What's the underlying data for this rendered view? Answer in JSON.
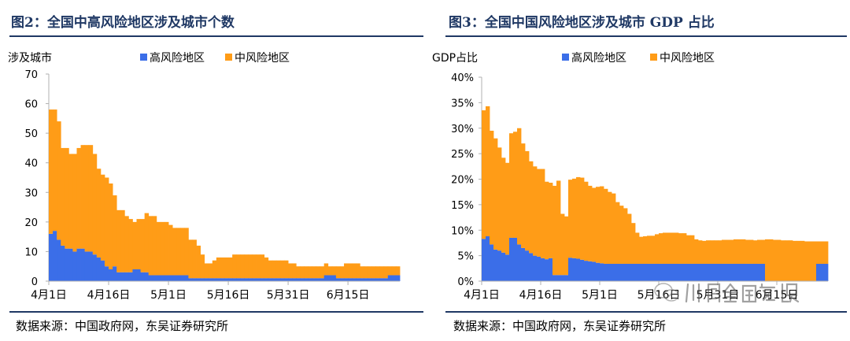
{
  "colors": {
    "high": "#3b6ee8",
    "medium": "#ff9c17",
    "title": "#1f3864",
    "axis": "#b0b0b0"
  },
  "watermark": {
    "brand_text": "川阅全球宏观",
    "icon": "wechat-logo-icon"
  },
  "chart_data": [
    {
      "type": "bar",
      "stacked": true,
      "title": "图2：全国中高风险地区涉及城市个数",
      "ylabel": "涉及城市",
      "xlabel": "",
      "ylim": [
        0,
        70
      ],
      "yticks": [
        0,
        10,
        20,
        30,
        40,
        50,
        60,
        70
      ],
      "ytick_labels": [
        "0",
        "10",
        "20",
        "30",
        "40",
        "50",
        "60",
        "70"
      ],
      "x_start": "4月1日",
      "xticks": [
        {
          "label": "4月1日",
          "day": 0
        },
        {
          "label": "4月16日",
          "day": 15
        },
        {
          "label": "5月1日",
          "day": 30
        },
        {
          "label": "5月16日",
          "day": 45
        },
        {
          "label": "5月31日",
          "day": 60
        },
        {
          "label": "6月15日",
          "day": 75
        }
      ],
      "legend": {
        "position": "top-center",
        "entries": [
          "高风险地区",
          "中风险地区"
        ]
      },
      "source": "数据来源：中国政府网，东吴证券研究所",
      "series": [
        {
          "name": "高风险地区",
          "key": "high",
          "values": [
            16,
            17,
            14,
            12,
            11,
            11,
            10,
            11,
            11,
            10,
            10,
            9,
            8,
            7,
            5,
            4,
            5,
            3,
            3,
            3,
            3,
            4,
            4,
            3,
            3,
            2,
            2,
            2,
            2,
            2,
            2,
            2,
            2,
            2,
            2,
            1,
            1,
            1,
            1,
            1,
            1,
            1,
            1,
            1,
            1,
            1,
            1,
            1,
            1,
            1,
            1,
            1,
            1,
            1,
            1,
            1,
            1,
            1,
            1,
            1,
            1,
            1,
            1,
            1,
            1,
            1,
            1,
            1,
            1,
            2,
            2,
            2,
            1,
            1,
            1,
            1,
            1,
            1,
            1,
            1,
            1,
            1,
            1,
            1,
            1,
            2,
            2,
            2
          ]
        },
        {
          "name": "中风险地区",
          "key": "medium",
          "values": [
            42,
            41,
            40,
            33,
            34,
            32,
            33,
            34,
            35,
            36,
            36,
            34,
            30,
            29,
            30,
            29,
            24,
            21,
            21,
            19,
            18,
            16,
            17,
            18,
            20,
            20,
            20,
            18,
            18,
            18,
            17,
            16,
            16,
            16,
            16,
            13,
            13,
            11,
            8,
            5,
            5,
            6,
            7,
            7,
            7,
            7,
            8,
            8,
            8,
            8,
            8,
            8,
            8,
            8,
            7,
            6,
            6,
            6,
            6,
            6,
            5,
            5,
            4,
            4,
            4,
            4,
            4,
            4,
            4,
            4,
            3,
            3,
            4,
            4,
            5,
            5,
            5,
            5,
            4,
            4,
            4,
            4,
            4,
            4,
            4,
            3,
            3,
            3
          ]
        }
      ]
    },
    {
      "type": "bar",
      "stacked": true,
      "title": "图3：全国中国风险地区涉及城市 GDP 占比",
      "ylabel": "GDP占比",
      "xlabel": "",
      "ylim": [
        0,
        40
      ],
      "yticks": [
        0,
        5,
        10,
        15,
        20,
        25,
        30,
        35,
        40
      ],
      "ytick_labels": [
        "0%",
        "5%",
        "10%",
        "15%",
        "20%",
        "25%",
        "30%",
        "35%",
        "40%"
      ],
      "x_start": "4月1日",
      "xticks": [
        {
          "label": "4月1日",
          "day": 0
        },
        {
          "label": "4月16日",
          "day": 15
        },
        {
          "label": "5月1日",
          "day": 30
        },
        {
          "label": "5月16日",
          "day": 45
        },
        {
          "label": "5月31日",
          "day": 60
        },
        {
          "label": "6月15日",
          "day": 75
        }
      ],
      "legend": {
        "position": "top-center",
        "entries": [
          "高风险地区",
          "中风险地区"
        ]
      },
      "source": "数据来源：中国政府网，东吴证券研究所",
      "series": [
        {
          "name": "高风险地区",
          "key": "high",
          "values": [
            8.3,
            8.8,
            7.2,
            6.2,
            6.0,
            5.6,
            5.2,
            8.5,
            8.5,
            7.2,
            6.5,
            6.0,
            5.5,
            5.0,
            4.8,
            4.5,
            4.3,
            4.5,
            1.2,
            1.2,
            1.2,
            1.2,
            4.6,
            4.5,
            4.4,
            4.2,
            4.0,
            3.9,
            3.8,
            3.6,
            3.5,
            3.4,
            3.4,
            3.4,
            3.4,
            3.4,
            3.4,
            3.4,
            3.4,
            3.4,
            3.4,
            3.4,
            3.4,
            3.4,
            3.4,
            3.4,
            3.4,
            3.4,
            3.4,
            3.4,
            3.4,
            3.4,
            3.4,
            3.4,
            3.4,
            3.4,
            3.4,
            3.4,
            3.4,
            3.4,
            3.4,
            3.4,
            3.4,
            3.4,
            3.4,
            3.4,
            3.4,
            3.4,
            3.4,
            3.4,
            3.4,
            3.4,
            0,
            0,
            0,
            0,
            0,
            0,
            0,
            0,
            0,
            0,
            0,
            0,
            0,
            3.4,
            3.4,
            3.4
          ]
        },
        {
          "name": "中风险地区",
          "key": "medium",
          "values": [
            25.2,
            25.5,
            22.3,
            21.8,
            20.2,
            18.6,
            18.0,
            20.5,
            20.8,
            22.8,
            20.5,
            19.5,
            18.0,
            17.5,
            17.2,
            17.5,
            15.2,
            14.8,
            17.5,
            18.5,
            12.0,
            11.5,
            15.3,
            15.6,
            16.0,
            16.1,
            15.5,
            14.8,
            14.5,
            14.9,
            15.1,
            14.7,
            14.1,
            13.8,
            12.1,
            11.4,
            10.9,
            9.8,
            8.0,
            6.1,
            5.3,
            5.4,
            5.5,
            5.5,
            5.8,
            6.0,
            6.1,
            6.1,
            6.1,
            6.1,
            6.0,
            6.0,
            5.6,
            5.6,
            4.8,
            4.6,
            4.5,
            4.6,
            4.6,
            4.6,
            4.6,
            4.7,
            4.7,
            4.7,
            4.8,
            4.8,
            4.8,
            4.7,
            4.7,
            4.6,
            4.7,
            4.7,
            8.2,
            8.2,
            8.1,
            8.1,
            8.0,
            8.0,
            8.0,
            7.9,
            7.9,
            7.9,
            7.8,
            7.8,
            7.8,
            4.4,
            4.4,
            4.4
          ]
        }
      ]
    }
  ]
}
